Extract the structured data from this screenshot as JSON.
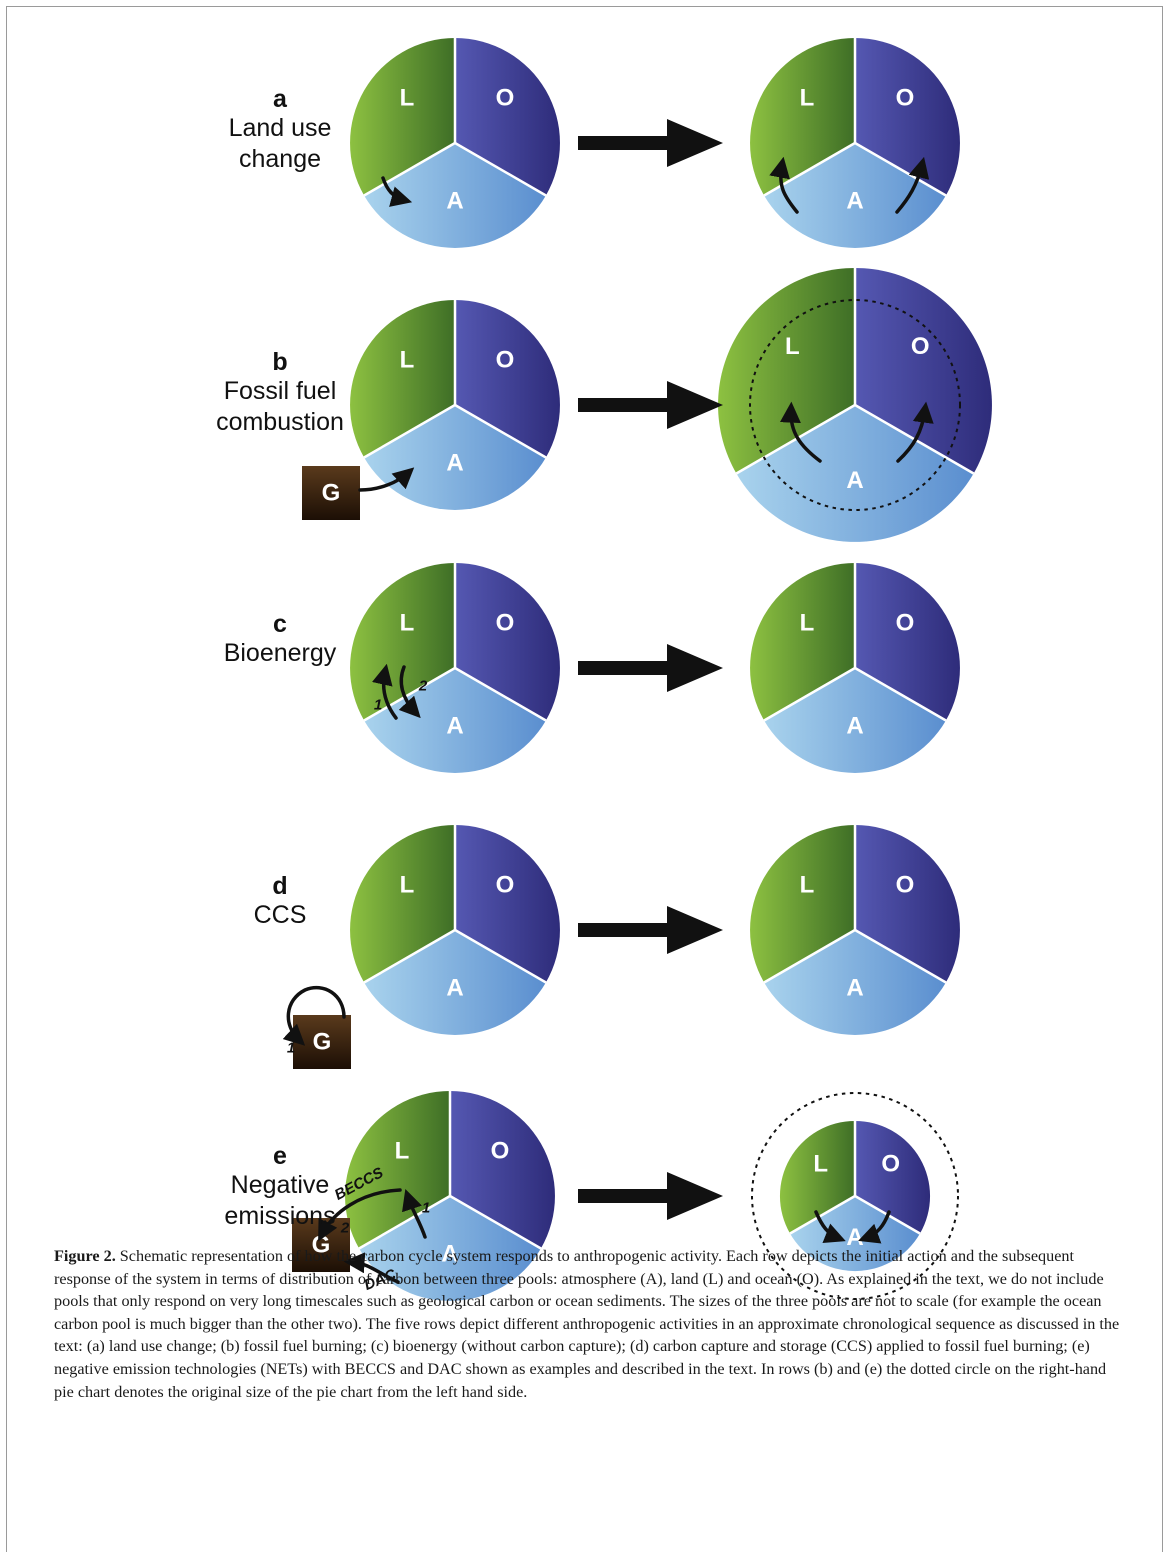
{
  "pool_labels": {
    "atmosphere": "A",
    "land": "L",
    "ocean": "O",
    "geological": "G"
  },
  "rows": [
    {
      "letter": "a",
      "name": "Land use\nchange"
    },
    {
      "letter": "b",
      "name": "Fossil fuel\ncombustion"
    },
    {
      "letter": "c",
      "name": "Bioenergy"
    },
    {
      "letter": "d",
      "name": "CCS"
    },
    {
      "letter": "e",
      "name": "Negative\nemissions"
    }
  ],
  "arrow_labels": {
    "c_step1": "1",
    "c_step2": "2",
    "d_step1": "1",
    "e_step1": "1",
    "e_step2": "2",
    "e_beccs": "BECCS",
    "e_dac": "DAC"
  },
  "caption": {
    "label": "Figure 2.",
    "text": " Schematic representation of how the carbon cycle system responds to anthropogenic activity. Each row depicts the initial action and the subsequent response of the system in terms of distribution of carbon between three pools: atmosphere (A), land (L) and ocean (O). As explained in the text, we do not include pools that only respond on very long timescales such as geological carbon or ocean sediments. The sizes of the three pools are not to scale (for example the ocean carbon pool is much bigger than the other two). The five rows depict different anthropogenic activities in an approximate chronological sequence as discussed in the text: (a) land use change; (b) fossil fuel burning; (c) bioenergy (without carbon capture); (d) carbon capture and storage (CCS) applied to fossil fuel burning; (e) negative emission technologies (NETs) with BECCS and DAC shown as examples and described in the text. In rows (b) and (e) the dotted circle on the right-hand pie chart denotes the original size of the pie chart from the left hand side."
  },
  "colors": {
    "land_light": "#8dc141",
    "land_dark": "#3e6e26",
    "ocean_light": "#5558b2",
    "ocean_dark": "#2e2c7a",
    "atmos_light": "#a9d3ed",
    "atmos_dark": "#5a8ecf",
    "geo_light": "#5a3a1c",
    "geo_dark": "#1c0f05",
    "arrow": "#111111"
  }
}
